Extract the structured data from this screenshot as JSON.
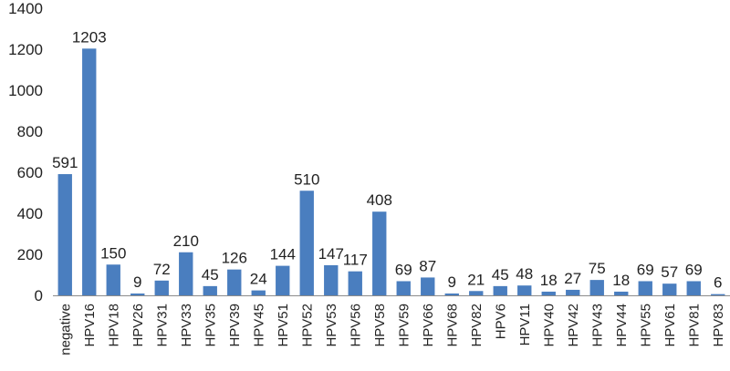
{
  "chart_data": {
    "type": "bar",
    "title": "",
    "xlabel": "",
    "ylabel": "",
    "categories": [
      "negative",
      "HPV16",
      "HPV18",
      "HPV26",
      "HPV31",
      "HPV33",
      "HPV35",
      "HPV39",
      "HPV45",
      "HPV51",
      "HPV52",
      "HPV53",
      "HPV56",
      "HPV58",
      "HPV59",
      "HPV66",
      "HPV68",
      "HPV82",
      "HPV6",
      "HPV11",
      "HPV40",
      "HPV42",
      "HPV43",
      "HPV44",
      "HPV55",
      "HPV61",
      "HPV81",
      "HPV83"
    ],
    "values": [
      591,
      1203,
      150,
      9,
      72,
      210,
      45,
      126,
      24,
      144,
      510,
      147,
      117,
      408,
      69,
      87,
      9,
      21,
      45,
      48,
      18,
      27,
      75,
      18,
      69,
      57,
      69,
      6
    ],
    "ylim": [
      0,
      1400
    ],
    "yticks": [
      0,
      200,
      400,
      600,
      800,
      1000,
      1200,
      1400
    ],
    "grid": false,
    "legend": "none",
    "bar_color": "#4a7ebf",
    "axis_color": "#8c8c8c"
  }
}
